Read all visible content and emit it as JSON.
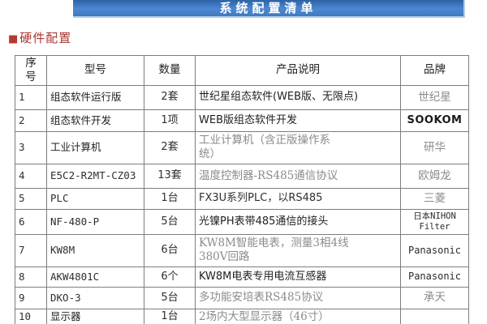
{
  "banner": {
    "title": "系统配置清单"
  },
  "section": {
    "bullet": "■",
    "title": "硬件配置"
  },
  "colors": {
    "banner_blue_top": "#2d63a6",
    "banner_blue_bottom": "#3f7ac0",
    "banner_edge": "#b5cde9",
    "section_red": "#a9372f",
    "table_border_gray": "#7d7d7d",
    "muted_text": "#8b8b8b"
  },
  "table": {
    "headers": {
      "no": "序\n号",
      "model": "型号",
      "qty": "数量",
      "desc": "产品说明",
      "brand": "品牌"
    },
    "rows": [
      {
        "no": "1",
        "model": "组态软件运行版",
        "qty": "2套",
        "desc": "世纪星组态软件(WEB版、无限点)",
        "brand": "世纪星"
      },
      {
        "no": "2",
        "model": "组态软件开发",
        "qty": "1项",
        "desc": "WEB版组态软件开发",
        "brand": "SOOKOM"
      },
      {
        "no": "3",
        "model": "工业计算机",
        "qty": "2套",
        "desc": "工业计算机（含正版操作系\n统）",
        "brand": "研华"
      },
      {
        "no": "4",
        "model": "E5C2-R2MT-CZ03",
        "qty": "13套",
        "desc": "温度控制器-RS485通信协议",
        "brand": "欧姆龙"
      },
      {
        "no": "5",
        "model": "PLC",
        "qty": "1台",
        "desc": "FX3U系列PLC，以RS485",
        "brand": "三菱"
      },
      {
        "no": "6",
        "model": "NF-480-P",
        "qty": "5台",
        "desc": "光镍PH表带485通信的接头",
        "brand": "日本NIHON\nFilter"
      },
      {
        "no": "7",
        "model": "KW8M",
        "qty": "6台",
        "desc": "KW8M智能电表，测量3相4线\n380V回路",
        "brand": "Panasonic"
      },
      {
        "no": "8",
        "model": "AKW4801C",
        "qty": "6个",
        "desc": "KW8M电表专用电流互感器",
        "brand": "Panasonic"
      },
      {
        "no": "9",
        "model": "DKO-3",
        "qty": "5台",
        "desc": "多功能安培表RS485协议",
        "brand": "承天"
      },
      {
        "no": "10",
        "model": "显示器",
        "qty": "1台",
        "desc": "2场内大型显示器（46寸）",
        "brand": ""
      }
    ]
  }
}
